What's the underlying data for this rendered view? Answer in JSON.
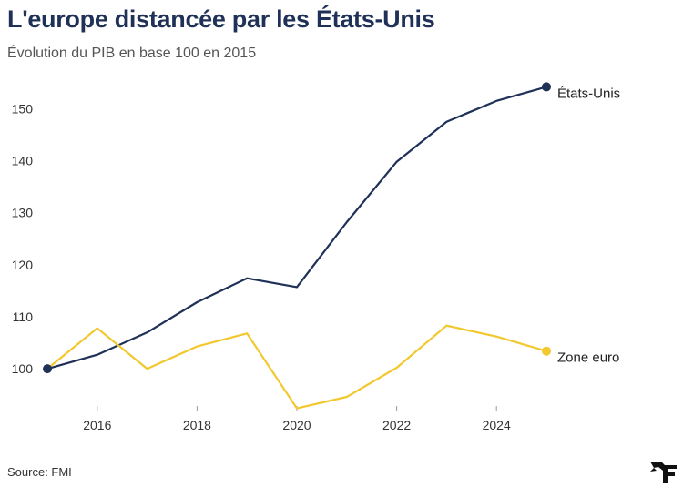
{
  "header": {
    "title": "L'europe distancée par les États-Unis",
    "subtitle": "Évolution du PIB en base 100 en 2015"
  },
  "footer": {
    "source": "Source: FMI"
  },
  "colors": {
    "us": "#1f3157",
    "euro": "#f2c82e",
    "title": "#1f3157",
    "gridline": "#dddddd"
  },
  "chart_data": {
    "type": "line",
    "title": "L'europe distancée par les États-Unis",
    "subtitle": "Évolution du PIB en base 100 en 2015",
    "xlabel": "",
    "ylabel": "",
    "x": [
      2015,
      2016,
      2017,
      2018,
      2019,
      2020,
      2021,
      2022,
      2023,
      2024,
      2025
    ],
    "xticks": [
      2016,
      2018,
      2020,
      2022,
      2024
    ],
    "yticks": [
      100,
      110,
      120,
      130,
      140,
      150
    ],
    "xlim": [
      2015,
      2025
    ],
    "ylim": [
      92.5,
      155.5
    ],
    "grid": false,
    "legend": "direct labels at line ends",
    "series": [
      {
        "name": "États-Unis",
        "color": "#1f3157",
        "values": [
          100,
          102.7,
          107,
          112.8,
          117.4,
          115.7,
          128.2,
          139.8,
          147.5,
          151.5,
          154.2
        ]
      },
      {
        "name": "Zone euro",
        "color": "#f2c82e",
        "values": [
          100,
          107.8,
          100,
          104.3,
          106.8,
          92.4,
          94.6,
          100.2,
          108.3,
          106.2,
          103.4
        ]
      }
    ],
    "source": "Source: FMI"
  }
}
